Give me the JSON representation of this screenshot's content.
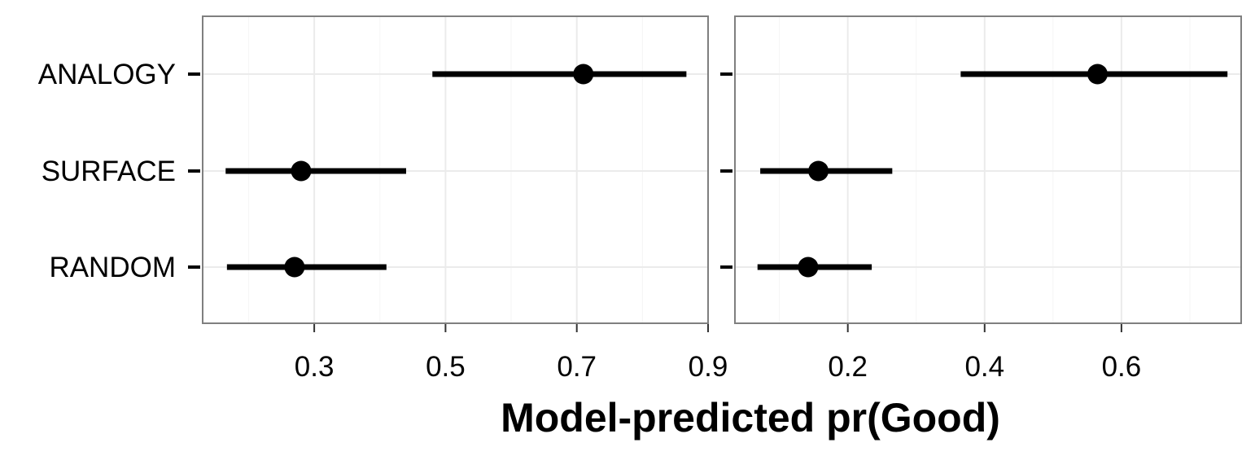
{
  "chart_data": {
    "type": "scatter",
    "subtype": "point-range (dot with interval bars), two faceted panels sharing the y-axis",
    "xlabel": "Model-predicted pr(Good)",
    "ylabel": "",
    "categories": [
      "ANALOGY",
      "SURFACE",
      "RANDOM"
    ],
    "grid": true,
    "legend": "none",
    "colors": {
      "marks": "#000000",
      "grid": "#ebebeb",
      "panel_border": "#7f7f7f"
    },
    "panels": [
      {
        "xlim": [
          0.13,
          0.9
        ],
        "xticks": [
          0.3,
          0.5,
          0.7,
          0.9
        ],
        "xtick_labels": [
          "0.3",
          "0.5",
          "0.7",
          "0.9"
        ],
        "points": [
          {
            "category": "ANALOGY",
            "estimate": 0.71,
            "lower": 0.48,
            "upper": 0.867
          },
          {
            "category": "SURFACE",
            "estimate": 0.28,
            "lower": 0.165,
            "upper": 0.44
          },
          {
            "category": "RANDOM",
            "estimate": 0.27,
            "lower": 0.167,
            "upper": 0.41
          }
        ]
      },
      {
        "xlim": [
          0.035,
          0.775
        ],
        "xticks": [
          0.2,
          0.4,
          0.6
        ],
        "xtick_labels": [
          "0.2",
          "0.4",
          "0.6"
        ],
        "points": [
          {
            "category": "ANALOGY",
            "estimate": 0.565,
            "lower": 0.365,
            "upper": 0.755
          },
          {
            "category": "SURFACE",
            "estimate": 0.157,
            "lower": 0.072,
            "upper": 0.265
          },
          {
            "category": "RANDOM",
            "estimate": 0.142,
            "lower": 0.068,
            "upper": 0.235
          }
        ]
      }
    ]
  }
}
